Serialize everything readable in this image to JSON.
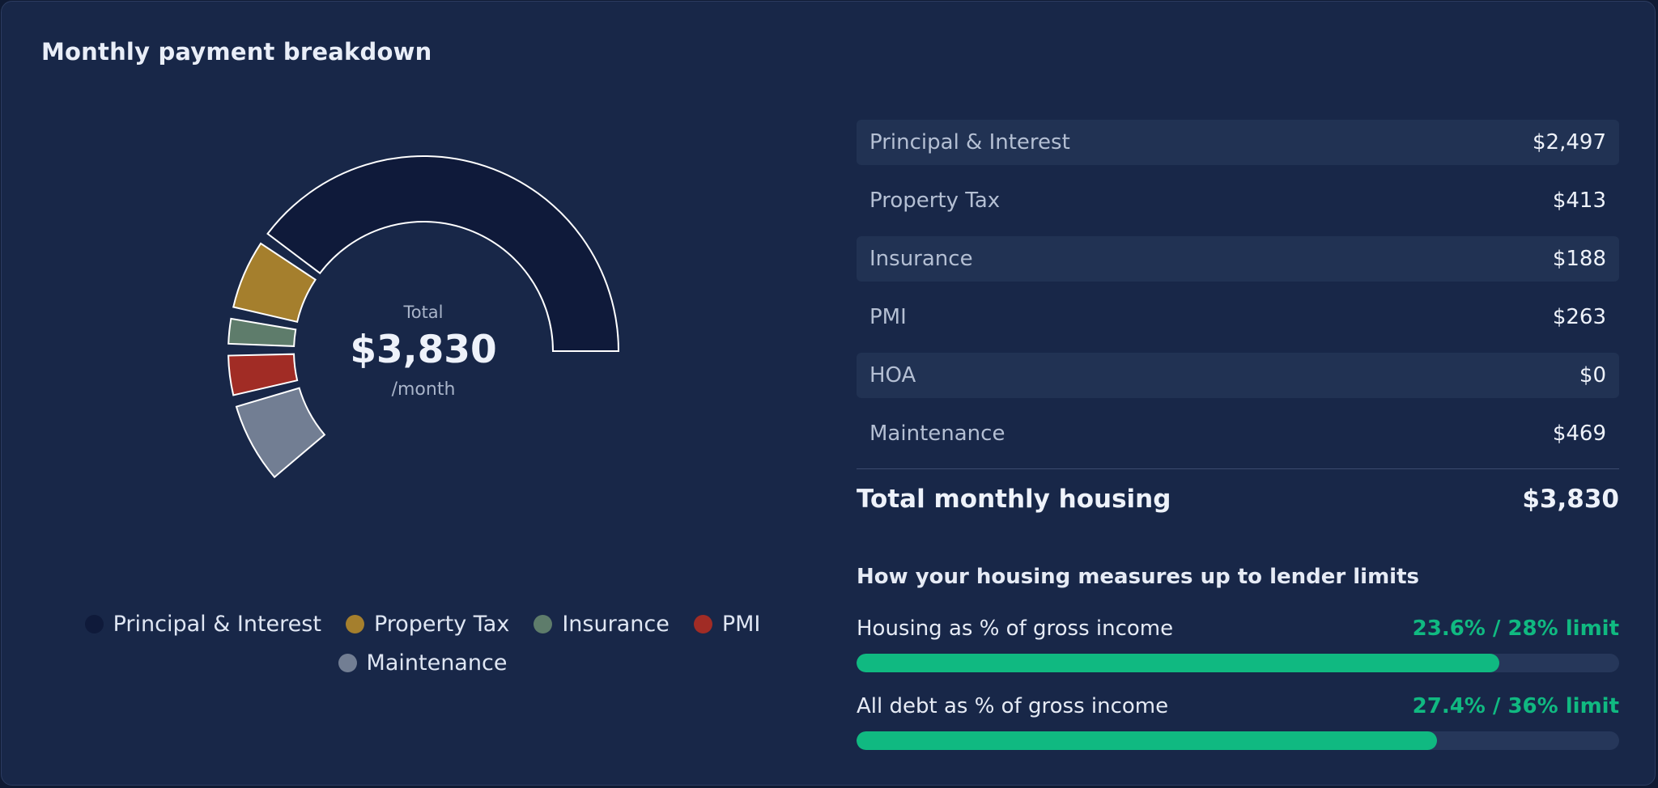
{
  "card": {
    "title": "Monthly payment breakdown"
  },
  "chart_data": {
    "type": "pie",
    "subtype": "semi-donut",
    "categories": [
      "Principal & Interest",
      "Property Tax",
      "Insurance",
      "PMI",
      "HOA",
      "Maintenance"
    ],
    "values": [
      2497,
      413,
      188,
      263,
      0,
      469
    ],
    "colors": [
      "#0f1a3a",
      "#a57f2d",
      "#5e7c6b",
      "#a12c25",
      "#4a5a78",
      "#727e93"
    ],
    "center": {
      "label": "Total",
      "value": "$3,830",
      "unit": "/month"
    }
  },
  "legend": [
    {
      "label": "Principal & Interest",
      "color": "#0f1a3a"
    },
    {
      "label": "Property Tax",
      "color": "#a57f2d"
    },
    {
      "label": "Insurance",
      "color": "#5e7c6b"
    },
    {
      "label": "PMI",
      "color": "#a12c25"
    },
    {
      "label": "Maintenance",
      "color": "#727e93"
    }
  ],
  "breakdown": {
    "rows": [
      {
        "label": "Principal & Interest",
        "value": "$2,497"
      },
      {
        "label": "Property Tax",
        "value": "$413"
      },
      {
        "label": "Insurance",
        "value": "$188"
      },
      {
        "label": "PMI",
        "value": "$263"
      },
      {
        "label": "HOA",
        "value": "$0"
      },
      {
        "label": "Maintenance",
        "value": "$469"
      }
    ],
    "total_label": "Total monthly housing",
    "total_value": "$3,830"
  },
  "limits": {
    "title": "How your housing measures up to lender limits",
    "metrics": [
      {
        "label": "Housing as % of gross income",
        "value_text": "23.6% / 28% limit",
        "ratio": 0.843
      },
      {
        "label": "All debt as % of gross income",
        "value_text": "27.4% / 36% limit",
        "ratio": 0.761
      }
    ]
  }
}
